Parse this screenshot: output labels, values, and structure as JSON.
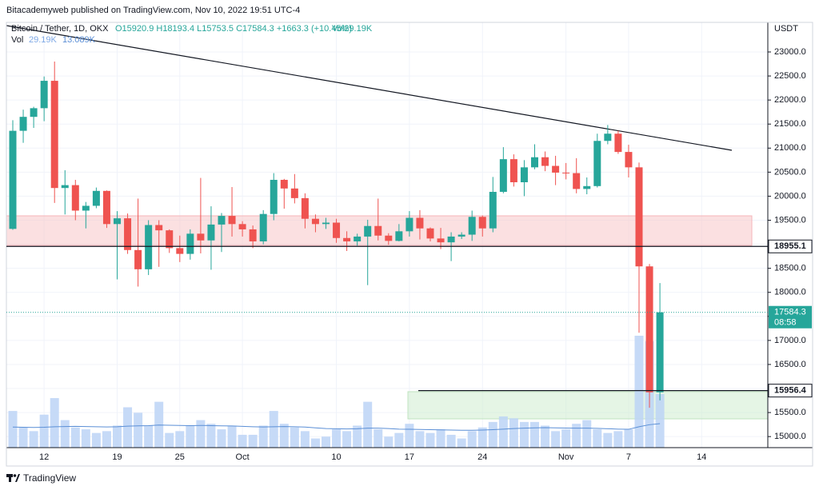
{
  "header": {
    "published": "Bitacademyweb published on TradingView.com, Nov 10, 2022 19:51 UTC-4"
  },
  "legend": {
    "symbol": "Bitcoin / Tether, 1D, OKX",
    "ohlc": "O15920.9 H18193.4 L15753.5 C17584.3 +1663.3 (+10.45%)",
    "volume": "Vol29.19K",
    "volume_study": "Vol",
    "volume_value": "29.19K",
    "volume_ma": "13.089K"
  },
  "footer": {
    "brand": "TradingView"
  },
  "chart_data": {
    "type": "candlestick",
    "y_unit": "USDT",
    "up_color": "#26a69a",
    "down_color": "#ef5350",
    "volume_color": "#bcd3f6",
    "ma_color": "#5b8fd6",
    "grid": true,
    "categories": [
      null,
      null,
      null,
      "12",
      null,
      null,
      null,
      null,
      null,
      null,
      "19",
      null,
      null,
      null,
      null,
      null,
      "25",
      null,
      null,
      null,
      null,
      null,
      "Oct",
      null,
      null,
      null,
      null,
      null,
      null,
      null,
      null,
      "10",
      null,
      null,
      null,
      null,
      null,
      null,
      "17",
      null,
      null,
      null,
      null,
      null,
      null,
      "24",
      null,
      null,
      null,
      null,
      null,
      null,
      null,
      "Nov",
      null,
      null,
      null,
      null,
      null,
      "7",
      null,
      null,
      null,
      null,
      null,
      null,
      "14",
      null,
      null,
      null,
      null,
      null
    ],
    "open": [
      19320,
      21360,
      21650,
      21830,
      22400,
      20170,
      20230,
      19700,
      19800,
      20110,
      19420,
      19540,
      18880,
      18480,
      19400,
      19290,
      18920,
      18800,
      19220,
      19080,
      19410,
      19590,
      19420,
      19310,
      19060,
      19630,
      20340,
      20160,
      19960,
      19530,
      19420,
      19450,
      19130,
      19060,
      19160,
      19380,
      19180,
      19070,
      19270,
      19550,
      19330,
      19120,
      19040,
      19160,
      19200,
      19570,
      19330,
      20090,
      20770,
      20290,
      20600,
      20810,
      20630,
      20490,
      20480,
      20150,
      20210,
      21150,
      21300,
      20920,
      20600,
      18540,
      15920.9,
      null,
      null,
      null,
      null,
      null,
      null,
      null,
      null,
      null
    ],
    "high": [
      21580,
      21800,
      21860,
      22490,
      22800,
      20540,
      20340,
      19880,
      20180,
      20120,
      19690,
      19640,
      19950,
      19500,
      19500,
      19310,
      19180,
      19310,
      20380,
      19790,
      19650,
      20190,
      19480,
      19390,
      19710,
      20480,
      20360,
      20460,
      20060,
      19620,
      19550,
      19530,
      19270,
      19220,
      19510,
      19950,
      19230,
      19420,
      19690,
      19710,
      19350,
      19340,
      19250,
      19250,
      19700,
      19600,
      20400,
      21020,
      20870,
      20750,
      21080,
      20930,
      20840,
      20690,
      20790,
      20390,
      21300,
      21480,
      21360,
      21070,
      20700,
      18590,
      18193.4,
      null,
      null,
      null,
      null,
      null,
      null,
      null,
      null,
      null
    ],
    "low": [
      19300,
      21110,
      21420,
      21560,
      19860,
      19620,
      19500,
      19330,
      19750,
      19340,
      18270,
      18800,
      18120,
      18360,
      18530,
      18820,
      18630,
      18680,
      18810,
      18470,
      18840,
      19160,
      19160,
      18920,
      19000,
      19500,
      19740,
      19850,
      19330,
      19250,
      19320,
      19030,
      18860,
      18970,
      18150,
      19080,
      18990,
      19060,
      19160,
      19100,
      19060,
      18900,
      18650,
      19110,
      19070,
      19160,
      19250,
      20060,
      20200,
      20000,
      20560,
      20520,
      20230,
      20350,
      20060,
      20040,
      20180,
      21080,
      20880,
      20390,
      17160,
      15600,
      15753.5,
      null,
      null,
      null,
      null,
      null,
      null,
      null,
      null,
      null
    ],
    "close": [
      21360,
      21650,
      21830,
      22400,
      20170,
      20230,
      19700,
      19800,
      20110,
      19420,
      19540,
      18880,
      18480,
      19400,
      19290,
      18920,
      18800,
      19220,
      19080,
      19410,
      19590,
      19420,
      19310,
      19060,
      19630,
      20340,
      20160,
      19960,
      19530,
      19420,
      19450,
      19130,
      19060,
      19160,
      19380,
      19180,
      19070,
      19270,
      19550,
      19330,
      19120,
      19040,
      19160,
      19200,
      19570,
      19330,
      20090,
      20770,
      20290,
      20600,
      20810,
      20630,
      20490,
      20480,
      20150,
      20210,
      21150,
      21300,
      20920,
      20600,
      18540,
      15920.9,
      17584.3,
      null,
      null,
      null,
      null,
      null,
      null,
      null,
      null,
      null
    ],
    "volume": [
      20,
      11,
      9,
      18,
      27,
      15,
      11,
      10,
      8,
      9,
      12,
      22,
      19,
      12,
      25,
      8,
      9,
      12,
      15,
      13,
      10,
      12,
      7,
      7,
      12,
      20,
      13,
      11,
      9,
      5,
      6,
      10,
      9,
      12,
      25,
      10,
      6,
      8,
      13,
      9,
      8,
      10,
      7,
      5,
      9,
      11,
      14,
      17,
      16,
      14,
      14,
      12,
      9,
      10,
      13,
      15,
      10,
      8,
      9,
      10,
      61,
      58,
      29.19,
      null,
      null,
      null,
      null,
      null,
      null,
      null,
      null,
      null
    ],
    "volume_ma_values": [
      11.2,
      11.1,
      11.0,
      11.1,
      11.4,
      11.5,
      11.6,
      11.5,
      11.4,
      11.3,
      11.4,
      11.7,
      11.9,
      12.0,
      12.3,
      12.2,
      12.1,
      12.0,
      12.1,
      12.0,
      11.9,
      11.8,
      11.6,
      11.4,
      11.3,
      11.4,
      11.5,
      11.4,
      11.2,
      10.8,
      10.4,
      10.3,
      10.2,
      10.3,
      10.6,
      10.6,
      10.4,
      10.1,
      10.0,
      9.9,
      9.8,
      9.7,
      9.6,
      9.5,
      9.5,
      9.6,
      9.8,
      10.1,
      10.4,
      10.6,
      10.8,
      10.9,
      10.8,
      10.7,
      10.6,
      10.6,
      10.5,
      10.3,
      10.1,
      10.0,
      11.4,
      12.5,
      13.089,
      null,
      null,
      null,
      null,
      null,
      null,
      null,
      null,
      null
    ],
    "ylim": [
      14770,
      23615
    ],
    "yticks": [
      {
        "value": 15000,
        "label": "15000.0"
      },
      {
        "value": 15500,
        "label": "15500.0"
      },
      {
        "value": 16000,
        "label": "16000.0"
      },
      {
        "value": 16500,
        "label": "16500.0"
      },
      {
        "value": 17000,
        "label": "17000.0"
      },
      {
        "value": 17500,
        "label": "17500.0"
      },
      {
        "value": 18000,
        "label": "18000.0"
      },
      {
        "value": 18500,
        "label": "18500.0"
      },
      {
        "value": 19000,
        "label": "19000.0"
      },
      {
        "value": 19500,
        "label": "19500.0"
      },
      {
        "value": 20000,
        "label": "20000.0"
      },
      {
        "value": 20500,
        "label": "20500.0"
      },
      {
        "value": 21000,
        "label": "21000.0"
      },
      {
        "value": 21500,
        "label": "21500.0"
      },
      {
        "value": 22000,
        "label": "22000.0"
      },
      {
        "value": 22500,
        "label": "22500.0"
      },
      {
        "value": 23000,
        "label": "23000.0"
      }
    ],
    "price_lines": [
      18955.1,
      15956.4
    ],
    "countdown": "08:58"
  }
}
